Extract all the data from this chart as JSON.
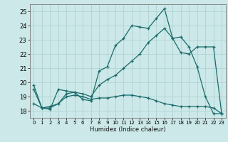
{
  "xlabel": "Humidex (Indice chaleur)",
  "bg_color": "#cce8e8",
  "grid_color": "#aacfcf",
  "line_color": "#1a6b6b",
  "xlim": [
    -0.5,
    23.5
  ],
  "ylim": [
    17.5,
    25.5
  ],
  "yticks": [
    18,
    19,
    20,
    21,
    22,
    23,
    24,
    25
  ],
  "xticks": [
    0,
    1,
    2,
    3,
    4,
    5,
    6,
    7,
    8,
    9,
    10,
    11,
    12,
    13,
    14,
    15,
    16,
    17,
    18,
    19,
    20,
    21,
    22,
    23
  ],
  "line1_x": [
    0,
    1,
    2,
    3,
    4,
    5,
    6,
    7,
    8,
    9,
    10,
    11,
    12,
    13,
    14,
    15,
    16,
    17,
    18,
    19,
    20,
    21,
    22,
    23
  ],
  "line1_y": [
    19.8,
    18.2,
    18.1,
    19.5,
    19.4,
    19.3,
    18.8,
    18.7,
    20.8,
    21.1,
    22.6,
    23.1,
    24.0,
    23.9,
    23.8,
    24.5,
    25.2,
    23.1,
    23.2,
    22.5,
    21.1,
    19.0,
    17.8,
    17.8
  ],
  "line2_x": [
    0,
    1,
    2,
    3,
    4,
    5,
    6,
    7,
    8,
    9,
    10,
    11,
    12,
    13,
    14,
    15,
    16,
    17,
    18,
    19,
    20,
    21,
    22,
    23
  ],
  "line2_y": [
    18.5,
    18.2,
    18.3,
    18.5,
    19.2,
    19.3,
    19.2,
    19.0,
    19.8,
    20.2,
    20.5,
    21.0,
    21.5,
    22.0,
    22.8,
    23.3,
    23.8,
    23.1,
    22.1,
    22.0,
    22.5,
    22.5,
    22.5,
    17.8
  ],
  "line3_x": [
    0,
    1,
    2,
    3,
    4,
    5,
    6,
    7,
    8,
    9,
    10,
    11,
    12,
    13,
    14,
    15,
    16,
    17,
    18,
    19,
    20,
    21,
    22,
    23
  ],
  "line3_y": [
    19.5,
    18.2,
    18.2,
    18.5,
    19.0,
    19.1,
    19.0,
    18.8,
    18.9,
    18.9,
    19.0,
    19.1,
    19.1,
    19.0,
    18.9,
    18.7,
    18.5,
    18.4,
    18.3,
    18.3,
    18.3,
    18.3,
    18.2,
    17.8
  ]
}
